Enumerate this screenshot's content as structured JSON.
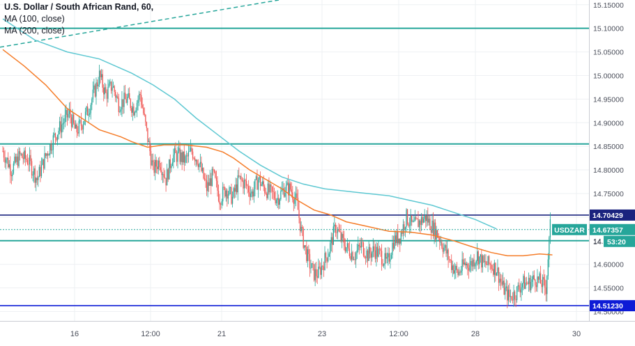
{
  "chart_data": {
    "type": "candlestick",
    "title": "U.S. Dollar / South African Rand, 60,",
    "indicators": [
      "MA (100, close)",
      "MA (200, close)"
    ],
    "ylim": [
      14.48,
      15.16
    ],
    "y_ticks": [
      "15.15000",
      "15.10000",
      "15.05000",
      "15.00000",
      "14.95000",
      "14.90000",
      "14.85000",
      "14.80000",
      "14.75000",
      "14.70000",
      "14.65000",
      "14.60000",
      "14.55000",
      "14.50000"
    ],
    "x_ticks": [
      "16",
      "12:00",
      "21",
      "23",
      "12:00",
      "28",
      "30"
    ],
    "horizontal_levels": [
      {
        "price": 15.1,
        "color": "#26a69a"
      },
      {
        "price": 14.855,
        "color": "#26a69a"
      },
      {
        "price": 14.65,
        "color": "#26a69a"
      },
      {
        "price": 14.70429,
        "label": "14.70429",
        "color": "#1a237e"
      },
      {
        "price": 14.5123,
        "label": "14.51230",
        "color": "#0d1bd6"
      }
    ],
    "current_price": {
      "symbol": "USDZAR",
      "price": "14.67357",
      "countdown": "53:20",
      "partial_label": "14",
      "color": "#26a69a"
    },
    "trendline": {
      "from_price": 15.06,
      "to_price": 15.16,
      "color": "#26a69a",
      "style": "dashed"
    },
    "colors": {
      "up": "#26a69a",
      "down": "#ef5350",
      "ma100": "#5ec8d2",
      "ma200": "#f57c28"
    },
    "close_path": [
      [
        0,
        14.84
      ],
      [
        8,
        14.8
      ],
      [
        16,
        14.83
      ],
      [
        24,
        14.82
      ],
      [
        32,
        14.78
      ],
      [
        40,
        14.83
      ],
      [
        48,
        14.87
      ],
      [
        56,
        14.9
      ],
      [
        62,
        14.92
      ],
      [
        68,
        14.88
      ],
      [
        74,
        14.9
      ],
      [
        80,
        14.93
      ],
      [
        86,
        14.97
      ],
      [
        90,
        15.0
      ],
      [
        96,
        14.96
      ],
      [
        102,
        14.98
      ],
      [
        108,
        14.94
      ],
      [
        116,
        14.95
      ],
      [
        122,
        14.93
      ],
      [
        128,
        14.96
      ],
      [
        134,
        14.88
      ],
      [
        140,
        14.8
      ],
      [
        146,
        14.82
      ],
      [
        152,
        14.78
      ],
      [
        158,
        14.83
      ],
      [
        164,
        14.83
      ],
      [
        170,
        14.82
      ],
      [
        176,
        14.84
      ],
      [
        182,
        14.82
      ],
      [
        190,
        14.76
      ],
      [
        196,
        14.79
      ],
      [
        202,
        14.74
      ],
      [
        208,
        14.76
      ],
      [
        214,
        14.74
      ],
      [
        220,
        14.78
      ],
      [
        226,
        14.77
      ],
      [
        232,
        14.75
      ],
      [
        238,
        14.78
      ],
      [
        244,
        14.76
      ],
      [
        250,
        14.75
      ],
      [
        256,
        14.74
      ],
      [
        262,
        14.76
      ],
      [
        268,
        14.76
      ],
      [
        274,
        14.73
      ],
      [
        278,
        14.67
      ],
      [
        282,
        14.63
      ],
      [
        286,
        14.6
      ],
      [
        290,
        14.58
      ],
      [
        294,
        14.58
      ],
      [
        298,
        14.6
      ],
      [
        304,
        14.63
      ],
      [
        310,
        14.68
      ],
      [
        316,
        14.65
      ],
      [
        322,
        14.63
      ],
      [
        328,
        14.62
      ],
      [
        334,
        14.64
      ],
      [
        340,
        14.62
      ],
      [
        346,
        14.63
      ],
      [
        352,
        14.62
      ],
      [
        358,
        14.6
      ],
      [
        364,
        14.65
      ],
      [
        370,
        14.66
      ],
      [
        376,
        14.7
      ],
      [
        382,
        14.68
      ],
      [
        388,
        14.69
      ],
      [
        394,
        14.7
      ],
      [
        400,
        14.68
      ],
      [
        406,
        14.66
      ],
      [
        412,
        14.63
      ],
      [
        418,
        14.6
      ],
      [
        424,
        14.58
      ],
      [
        430,
        14.6
      ],
      [
        436,
        14.6
      ],
      [
        442,
        14.62
      ],
      [
        448,
        14.6
      ],
      [
        454,
        14.6
      ],
      [
        460,
        14.59
      ],
      [
        466,
        14.55
      ],
      [
        472,
        14.53
      ],
      [
        478,
        14.54
      ],
      [
        484,
        14.56
      ],
      [
        490,
        14.56
      ],
      [
        496,
        14.57
      ],
      [
        502,
        14.56
      ],
      [
        506,
        14.55
      ],
      [
        510,
        14.68
      ]
    ],
    "ma100": [
      [
        0,
        15.12
      ],
      [
        30,
        15.075
      ],
      [
        60,
        15.05
      ],
      [
        90,
        15.035
      ],
      [
        120,
        15.005
      ],
      [
        140,
        14.98
      ],
      [
        160,
        14.95
      ],
      [
        180,
        14.91
      ],
      [
        200,
        14.875
      ],
      [
        220,
        14.84
      ],
      [
        240,
        14.81
      ],
      [
        260,
        14.785
      ],
      [
        280,
        14.77
      ],
      [
        300,
        14.76
      ],
      [
        320,
        14.755
      ],
      [
        340,
        14.75
      ],
      [
        360,
        14.745
      ],
      [
        380,
        14.735
      ],
      [
        400,
        14.725
      ],
      [
        420,
        14.71
      ],
      [
        440,
        14.695
      ],
      [
        460,
        14.675
      ]
    ],
    "ma200": [
      [
        0,
        15.055
      ],
      [
        20,
        15.02
      ],
      [
        40,
        14.98
      ],
      [
        60,
        14.93
      ],
      [
        70,
        14.915
      ],
      [
        90,
        14.885
      ],
      [
        110,
        14.87
      ],
      [
        120,
        14.86
      ],
      [
        135,
        14.848
      ],
      [
        150,
        14.853
      ],
      [
        170,
        14.853
      ],
      [
        190,
        14.848
      ],
      [
        205,
        14.838
      ],
      [
        215,
        14.825
      ],
      [
        230,
        14.8
      ],
      [
        245,
        14.78
      ],
      [
        260,
        14.76
      ],
      [
        275,
        14.735
      ],
      [
        290,
        14.715
      ],
      [
        305,
        14.705
      ],
      [
        320,
        14.69
      ],
      [
        340,
        14.68
      ],
      [
        360,
        14.67
      ],
      [
        380,
        14.668
      ],
      [
        400,
        14.662
      ],
      [
        420,
        14.65
      ],
      [
        440,
        14.635
      ],
      [
        455,
        14.625
      ],
      [
        470,
        14.618
      ],
      [
        485,
        14.618
      ],
      [
        500,
        14.622
      ],
      [
        512,
        14.62
      ]
    ]
  }
}
